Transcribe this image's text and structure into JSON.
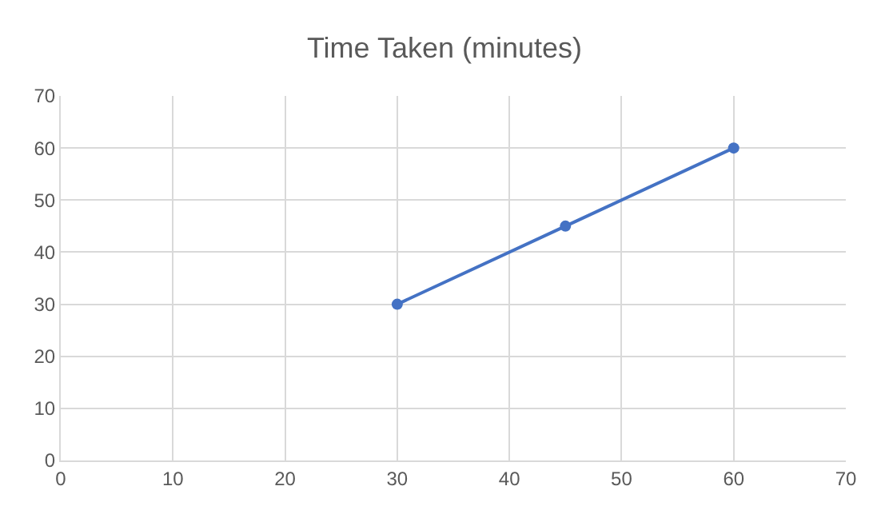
{
  "chart_data": {
    "type": "line",
    "title": "Time Taken (minutes)",
    "x": [
      30,
      45,
      60
    ],
    "series": [
      {
        "color": "#4472c4",
        "values": [
          30,
          45,
          60
        ]
      }
    ],
    "xlim": [
      0,
      70
    ],
    "xticks": [
      0,
      10,
      20,
      30,
      40,
      50,
      60,
      70
    ],
    "ylim": [
      0,
      70
    ],
    "yticks": [
      0,
      10,
      20,
      30,
      40,
      50,
      60,
      70
    ],
    "grid": true,
    "marker": "circle",
    "line_style": "solid"
  }
}
